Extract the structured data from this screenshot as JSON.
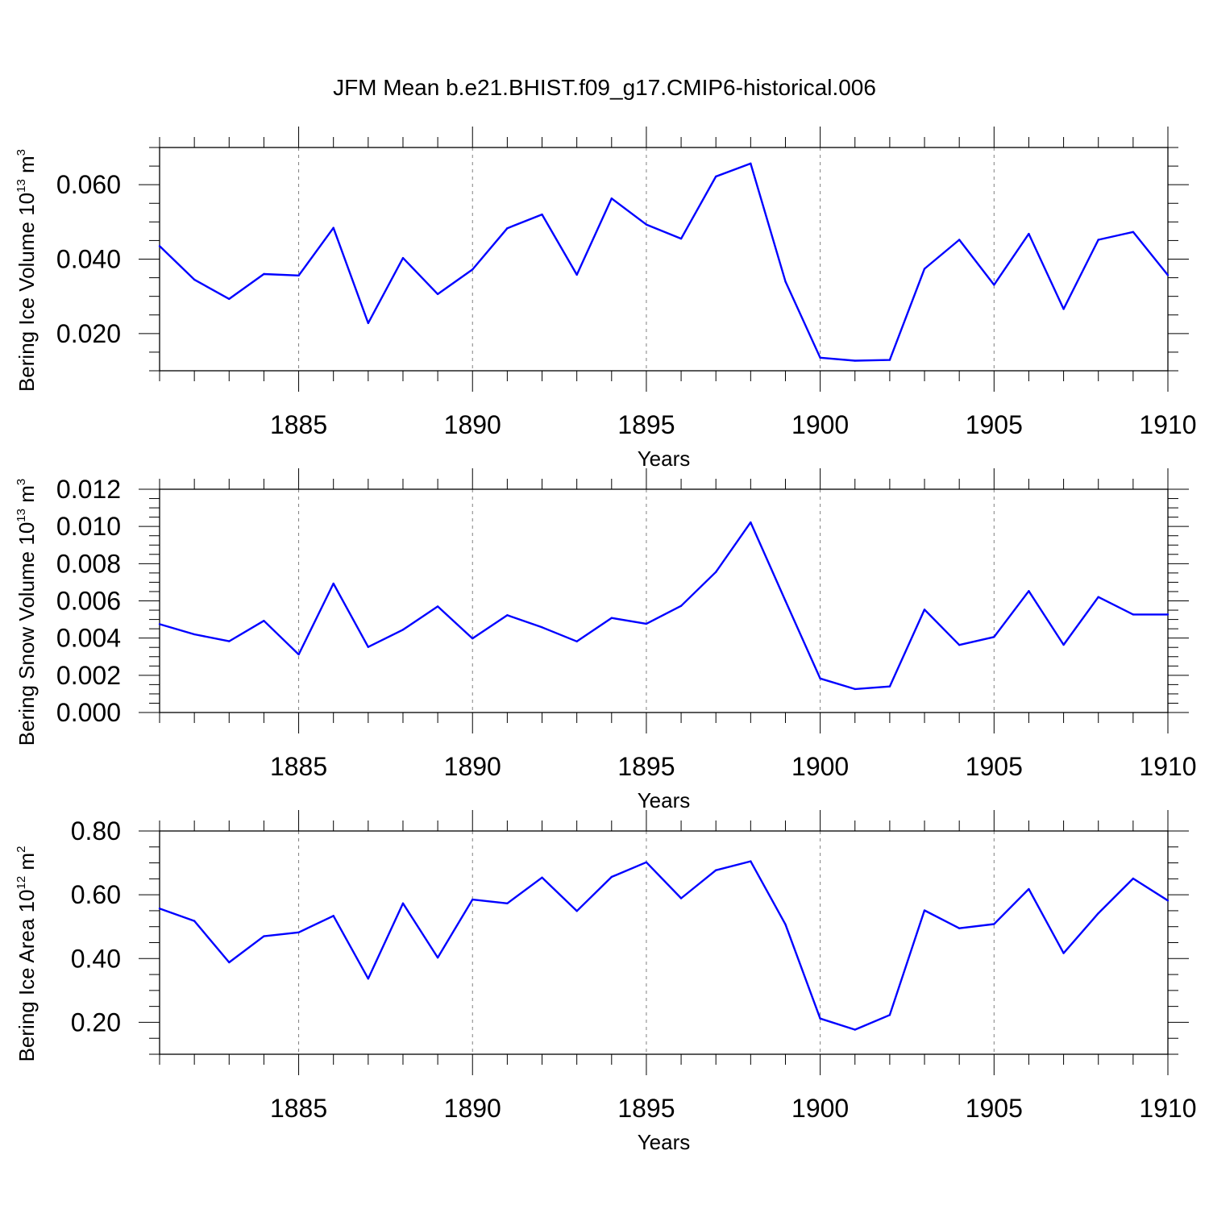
{
  "figure_title": "JFM Mean b.e21.BHIST.f09_g17.CMIP6-historical.006",
  "colors": {
    "line": "#0000ff",
    "axis": "#000000",
    "grid": "#808080"
  },
  "chart_data": [
    {
      "type": "line",
      "id": "ice-volume",
      "ylabel": "Bering Ice Volume 10",
      "ylabel_exp": "13",
      "ylabel_unit": " m",
      "ylabel_unit_exp": "3",
      "xlabel": "Years",
      "xlim": [
        1881,
        1910
      ],
      "ylim": [
        0.01,
        0.07
      ],
      "y_major_ticks": [
        0.02,
        0.04,
        0.06
      ],
      "y_tick_labels": [
        "0.020",
        "0.040",
        "0.060"
      ],
      "y_minor_step": 0.005,
      "x_major_ticks": [
        1885,
        1890,
        1895,
        1900,
        1905,
        1910
      ],
      "x_tick_labels": [
        "1885",
        "1890",
        "1895",
        "1900",
        "1905",
        "1910"
      ],
      "grid": "vertical dashed at major x ticks",
      "x": [
        1881,
        1882,
        1883,
        1884,
        1885,
        1886,
        1887,
        1888,
        1889,
        1890,
        1891,
        1892,
        1893,
        1894,
        1895,
        1896,
        1897,
        1898,
        1899,
        1900,
        1901,
        1902,
        1903,
        1904,
        1905,
        1906,
        1907,
        1908,
        1909,
        1910
      ],
      "values": [
        0.0435,
        0.0345,
        0.0293,
        0.036,
        0.0356,
        0.0484,
        0.0228,
        0.0403,
        0.0306,
        0.0372,
        0.0483,
        0.052,
        0.0358,
        0.0563,
        0.0493,
        0.0455,
        0.0622,
        0.0657,
        0.034,
        0.0135,
        0.0127,
        0.0129,
        0.0374,
        0.0452,
        0.0331,
        0.0468,
        0.0266,
        0.0452,
        0.0473,
        0.0357
      ]
    },
    {
      "type": "line",
      "id": "snow-volume",
      "ylabel": "Bering Snow Volume 10",
      "ylabel_exp": "13",
      "ylabel_unit": " m",
      "ylabel_unit_exp": "3",
      "xlabel": "Years",
      "xlim": [
        1881,
        1910
      ],
      "ylim": [
        0.0,
        0.012
      ],
      "y_major_ticks": [
        0.0,
        0.002,
        0.004,
        0.006,
        0.008,
        0.01,
        0.012
      ],
      "y_tick_labels": [
        "0.000",
        "0.002",
        "0.004",
        "0.006",
        "0.008",
        "0.010",
        "0.012"
      ],
      "y_minor_step": 0.0005,
      "x_major_ticks": [
        1885,
        1890,
        1895,
        1900,
        1905,
        1910
      ],
      "x_tick_labels": [
        "1885",
        "1890",
        "1895",
        "1900",
        "1905",
        "1910"
      ],
      "grid": "vertical dashed at major x ticks",
      "x": [
        1881,
        1882,
        1883,
        1884,
        1885,
        1886,
        1887,
        1888,
        1889,
        1890,
        1891,
        1892,
        1893,
        1894,
        1895,
        1896,
        1897,
        1898,
        1899,
        1900,
        1901,
        1902,
        1903,
        1904,
        1905,
        1906,
        1907,
        1908,
        1909,
        1910
      ],
      "values": [
        0.00475,
        0.0042,
        0.00383,
        0.00493,
        0.00312,
        0.00693,
        0.00352,
        0.00445,
        0.0057,
        0.00398,
        0.00523,
        0.00458,
        0.00382,
        0.00508,
        0.00477,
        0.00573,
        0.00755,
        0.01022,
        0.006,
        0.00183,
        0.00126,
        0.0014,
        0.00553,
        0.00363,
        0.00406,
        0.00653,
        0.00364,
        0.00621,
        0.00527,
        0.00527
      ]
    },
    {
      "type": "line",
      "id": "ice-area",
      "ylabel": "Bering Ice Area 10",
      "ylabel_exp": "12",
      "ylabel_unit": " m",
      "ylabel_unit_exp": "2",
      "xlabel": "Years",
      "xlim": [
        1881,
        1910
      ],
      "ylim": [
        0.1,
        0.8
      ],
      "y_major_ticks": [
        0.2,
        0.4,
        0.6,
        0.8
      ],
      "y_tick_labels": [
        "0.20",
        "0.40",
        "0.60",
        "0.80"
      ],
      "y_minor_step": 0.05,
      "x_major_ticks": [
        1885,
        1890,
        1895,
        1900,
        1905,
        1910
      ],
      "x_tick_labels": [
        "1885",
        "1890",
        "1895",
        "1900",
        "1905",
        "1910"
      ],
      "grid": "vertical dashed at major x ticks",
      "x": [
        1881,
        1882,
        1883,
        1884,
        1885,
        1886,
        1887,
        1888,
        1889,
        1890,
        1891,
        1892,
        1893,
        1894,
        1895,
        1896,
        1897,
        1898,
        1899,
        1900,
        1901,
        1902,
        1903,
        1904,
        1905,
        1906,
        1907,
        1908,
        1909,
        1910
      ],
      "values": [
        0.557,
        0.518,
        0.388,
        0.47,
        0.482,
        0.534,
        0.337,
        0.573,
        0.403,
        0.585,
        0.573,
        0.654,
        0.549,
        0.656,
        0.702,
        0.589,
        0.677,
        0.705,
        0.507,
        0.212,
        0.177,
        0.223,
        0.551,
        0.495,
        0.508,
        0.618,
        0.417,
        0.542,
        0.651,
        0.582
      ]
    }
  ]
}
